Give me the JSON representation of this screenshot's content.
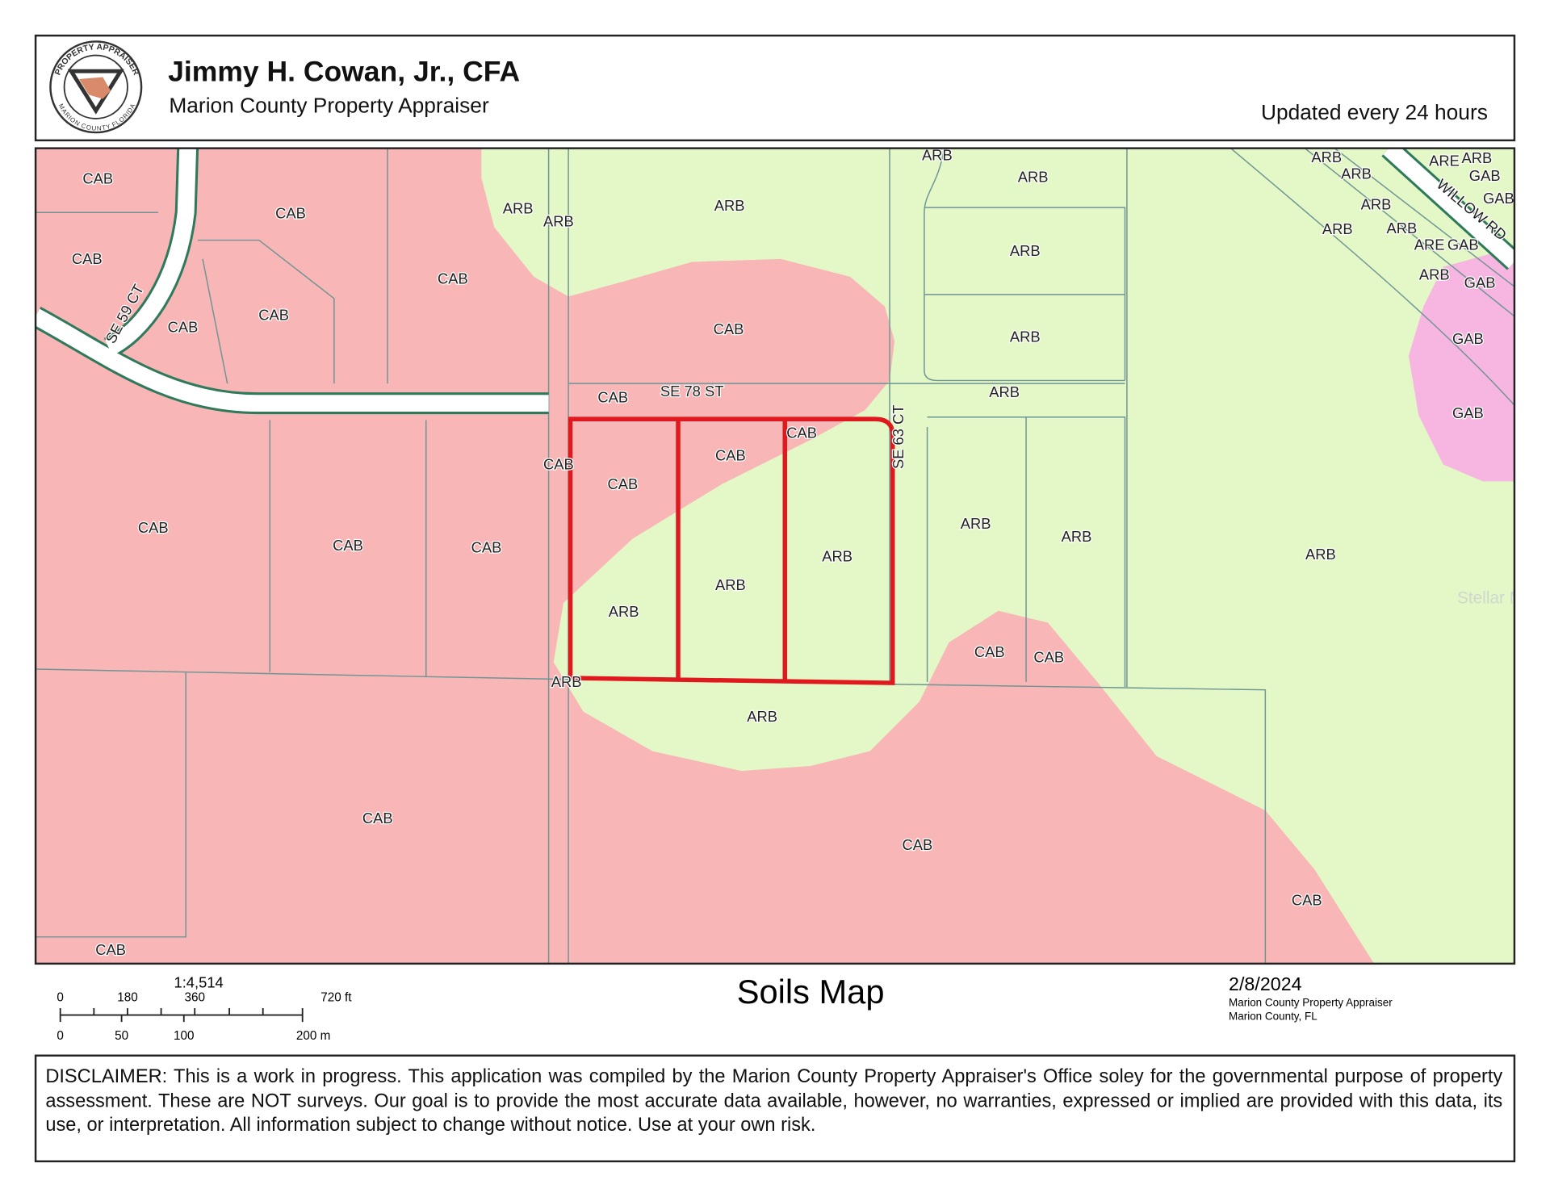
{
  "header": {
    "title": "Jimmy H. Cowan, Jr., CFA",
    "subtitle": "Marion County Property Appraiser",
    "updated": "Updated every 24 hours",
    "logo_top": "PROPERTY APPRAISER",
    "logo_bottom": "MARION COUNTY FLORIDA"
  },
  "map": {
    "soil_labels": [
      "CAB",
      "CAB",
      "CAB",
      "CAB",
      "CAB",
      "CAB",
      "ARB",
      "ARB",
      "ARB",
      "ARB",
      "ARB",
      "ARB",
      "ARB",
      "CAB",
      "CAB",
      "ARB",
      "CAB",
      "CAB",
      "CAB",
      "CAB",
      "CAB",
      "CAB",
      "CAB",
      "ARB",
      "ARB",
      "ARB",
      "ARB",
      "ARB",
      "ARB",
      "CAB",
      "CAB",
      "ARB",
      "ARB",
      "CAB",
      "CAB",
      "CAB",
      "CAB",
      "ARB",
      "ARB",
      "ARB",
      "ARB",
      "ARB",
      "ARE",
      "ARB",
      "GAB",
      "GAB",
      "ARE",
      "GAB",
      "ARB",
      "GAB",
      "GAB",
      "GAB"
    ],
    "streets": [
      "SE 78 ST",
      "SE 59 CT",
      "SE 63 CT",
      "WILLOW RD"
    ],
    "watermark": "Stellar MLS"
  },
  "footer": {
    "title": "Soils Map",
    "scale": "1:4,514",
    "scale_ft": [
      "0",
      "180",
      "360",
      "720 ft"
    ],
    "scale_m": [
      "0",
      "50",
      "100",
      "200 m"
    ],
    "date": "2/8/2024",
    "credit_1": "Marion County Property Appraiser",
    "credit_2": "Marion County, FL"
  },
  "disclaimer": "DISCLAIMER: This is a work in progress. This application was compiled by the Marion County Property Appraiser's Office soley for the governmental purpose of property assessment. These are NOT surveys. Our goal is to provide the most accurate data available, however, no warranties, expressed or implied are provided with this data, its use, or interpretation. All information subject to change without notice. Use at your own risk."
}
